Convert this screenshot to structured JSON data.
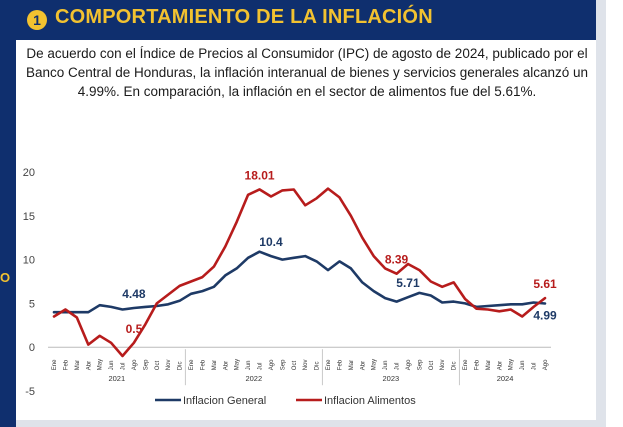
{
  "header": {
    "badge": "1",
    "title": "COMPORTAMIENTO DE LA INFLACIÓN",
    "side_glyph": "O"
  },
  "subtitle": "De acuerdo con el Índice de Precios al Consumidor (IPC) de agosto de 2024, publicado por el Banco Central de Honduras, la inflación interanual de bienes y servicios generales alcanzó un 4.99%. En comparación, la inflación en el sector de alimentos fue del 5.61%.",
  "colors": {
    "header_bg": "#0f2f6e",
    "title": "#f2c230",
    "general": "#1e3a66",
    "alimentos": "#b71c1c"
  },
  "chart_data": {
    "type": "line",
    "title": "",
    "xlabel": "",
    "ylabel": "",
    "ylim": [
      -5,
      20
    ],
    "yticks": [
      -5,
      0,
      5,
      10,
      15,
      20
    ],
    "grid": false,
    "legend_position": "bottom",
    "x": [
      "Ene",
      "Feb",
      "Mar",
      "Abr",
      "May",
      "Jun",
      "Jul",
      "Ago",
      "Sep",
      "Oct",
      "Nov",
      "Dic",
      "Ene",
      "Feb",
      "Mar",
      "Abr",
      "May",
      "Jun",
      "Jul",
      "Ago",
      "Sep",
      "Oct",
      "Nov",
      "Dic",
      "Ene",
      "Feb",
      "Mar",
      "Abr",
      "May",
      "Jun",
      "Jul",
      "Ago",
      "Sep",
      "Oct",
      "Nov",
      "Dic",
      "Ene",
      "Feb",
      "Mar",
      "Abr",
      "May",
      "Jun",
      "Jul",
      "Ago"
    ],
    "years": [
      {
        "label": "2021",
        "start": 0,
        "end": 11
      },
      {
        "label": "2022",
        "start": 12,
        "end": 23
      },
      {
        "label": "2023",
        "start": 24,
        "end": 35
      },
      {
        "label": "2024",
        "start": 36,
        "end": 43
      }
    ],
    "series": [
      {
        "name": "Inflacion General",
        "color": "#1e3a66",
        "values": [
          4.0,
          4.0,
          4.0,
          4.0,
          4.8,
          4.6,
          4.3,
          4.48,
          4.6,
          4.7,
          4.9,
          5.3,
          6.1,
          6.4,
          6.9,
          8.2,
          9.0,
          10.2,
          10.9,
          10.4,
          10.0,
          10.2,
          10.4,
          9.8,
          8.8,
          9.8,
          9.0,
          7.4,
          6.4,
          5.6,
          5.2,
          5.71,
          6.2,
          5.9,
          5.1,
          5.2,
          5.0,
          4.6,
          4.7,
          4.8,
          4.9,
          4.9,
          5.1,
          4.99
        ]
      },
      {
        "name": "Inflacion Alimentos",
        "color": "#b71c1c",
        "values": [
          3.5,
          4.3,
          3.4,
          0.3,
          1.3,
          0.5,
          -1.0,
          0.5,
          2.6,
          5.0,
          6.0,
          7.0,
          7.5,
          8.0,
          9.2,
          11.5,
          14.3,
          17.4,
          18.01,
          17.2,
          17.9,
          18.0,
          16.2,
          17.0,
          18.1,
          17.1,
          15.0,
          12.5,
          10.4,
          9.0,
          8.39,
          9.5,
          8.8,
          7.5,
          6.9,
          7.4,
          5.5,
          4.4,
          4.3,
          4.1,
          4.3,
          3.5,
          4.6,
          5.61
        ]
      }
    ],
    "annotations": [
      {
        "text": "4.48",
        "series": 0,
        "index": 7,
        "pos": "above"
      },
      {
        "text": "0.5",
        "series": 1,
        "index": 7,
        "pos": "above"
      },
      {
        "text": "18.01",
        "series": 1,
        "index": 18,
        "pos": "above"
      },
      {
        "text": "10.4",
        "series": 0,
        "index": 19,
        "pos": "above"
      },
      {
        "text": "8.39",
        "series": 1,
        "index": 30,
        "pos": "above"
      },
      {
        "text": "5.71",
        "series": 0,
        "index": 31,
        "pos": "above"
      },
      {
        "text": "5.61",
        "series": 1,
        "index": 43,
        "pos": "above"
      },
      {
        "text": "4.99",
        "series": 0,
        "index": 43,
        "pos": "below"
      }
    ]
  }
}
